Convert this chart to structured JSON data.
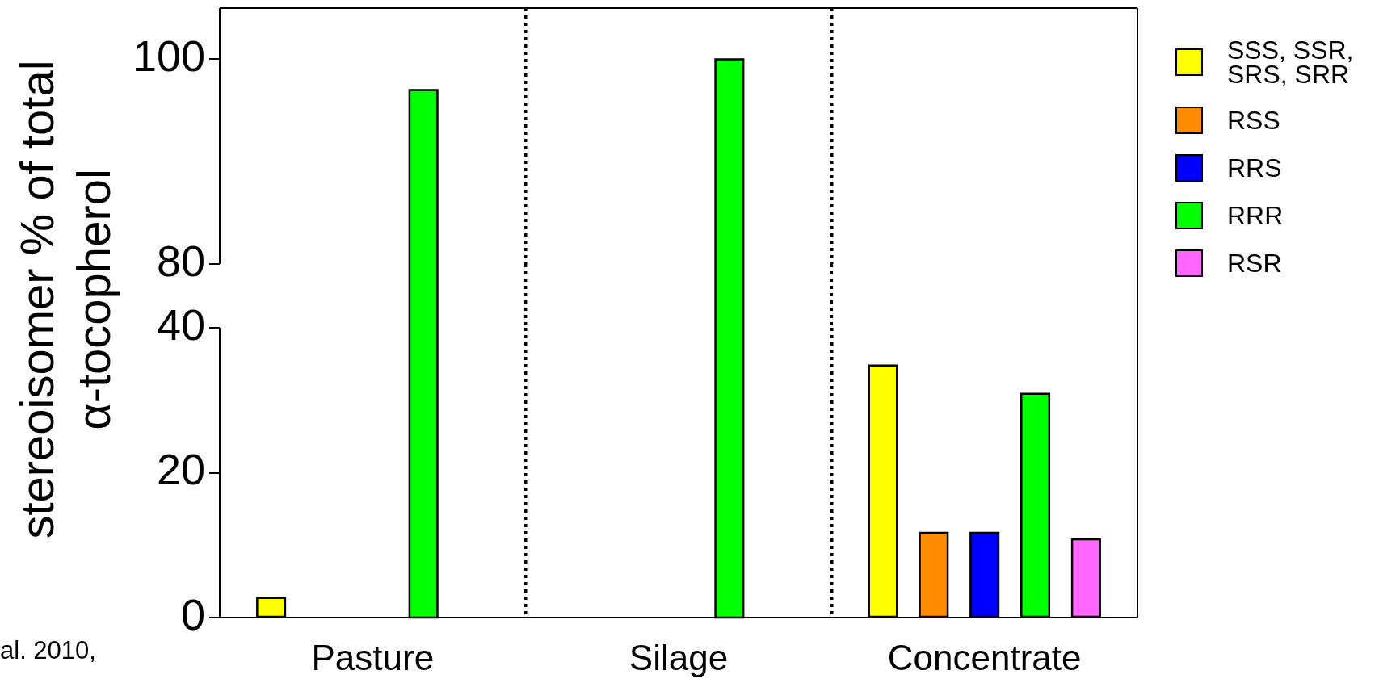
{
  "chart_data": [
    {
      "type": "bar",
      "categories": [
        null,
        null,
        null
      ],
      "series": [
        {
          "name": "SSS, SSR, SRS, SRR",
          "color": "#ffff00",
          "values": [
            null,
            null,
            null
          ]
        },
        {
          "name": "RSS",
          "color": "#ff8c00",
          "values": [
            null,
            null,
            null
          ]
        },
        {
          "name": "RRS",
          "color": "#0000ff",
          "values": [
            null,
            null,
            null
          ]
        },
        {
          "name": "RRR",
          "color": "#00ff00",
          "values": [
            97,
            100,
            null
          ]
        },
        {
          "name": "RSR",
          "color": "#ff66ff",
          "values": [
            null,
            null,
            null
          ]
        }
      ],
      "ylim": [
        80,
        105
      ],
      "yticks": [
        80,
        100
      ],
      "grid": "x",
      "legend": "right"
    },
    {
      "type": "bar",
      "ylabel": "stereoisomer % of total α-tocopherol",
      "categories": [
        "Pasture",
        "Silage",
        "Concentrate"
      ],
      "series": [
        {
          "color": "#ffff00",
          "values": [
            2.7,
            0,
            34.8
          ]
        },
        {
          "color": "#ff8c00",
          "values": [
            0,
            0,
            11.7
          ]
        },
        {
          "color": "#0000ff",
          "values": [
            0,
            0,
            11.7
          ]
        },
        {
          "color": "#00ff00",
          "values": [
            null,
            null,
            30.9
          ]
        },
        {
          "color": "#ff66ff",
          "values": [
            null,
            null,
            10.8
          ]
        }
      ],
      "ylim": [
        0,
        40
      ],
      "yticks": [
        0,
        20,
        40
      ],
      "grid": "x",
      "annotations": [
        "al. 2010,"
      ]
    }
  ]
}
